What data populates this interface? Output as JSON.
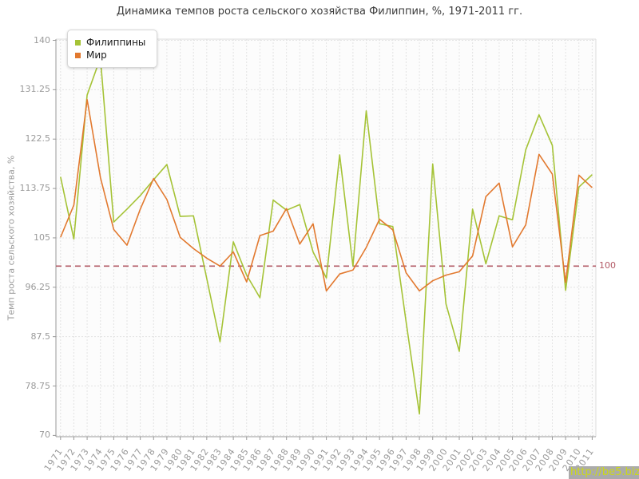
{
  "title": "Динамика темпов роста сельского хозяйства Филиппин, %, 1971-2011 гг.",
  "y_axis_title": "Темп роста сельского хозяйства, %",
  "watermark": "http://be5.biz/",
  "guide": {
    "value": 100,
    "label": "100",
    "color": "#b25965"
  },
  "legend": {
    "items": [
      {
        "label": "Филиппины",
        "color": "#a5c336"
      },
      {
        "label": "Мир",
        "color": "#e2792f"
      }
    ]
  },
  "colors": {
    "philippines_line": "#a5c336",
    "world_line": "#e2792f",
    "grid": "#e3e3e3",
    "axis": "#999999",
    "tick_text": "#9a9a9a",
    "plot_background": "#fcfcfc",
    "plot_border_light": "#dddddd",
    "guide_line": "#b25965",
    "watermark_bg": "#ababab",
    "watermark_text": "#ccd918"
  },
  "chart_data": {
    "type": "line",
    "title": "Динамика темпов роста сельского хозяйства Филиппин, %, 1971-2011 гг.",
    "xlabel": "",
    "ylabel": "Темп роста сельского хозяйства, %",
    "ylim": [
      70,
      140
    ],
    "y_ticks": [
      140,
      131.25,
      122.5,
      113.75,
      105,
      96.25,
      87.5,
      78.75,
      70
    ],
    "grid": true,
    "legend_position": "top-left",
    "guide_value": 100,
    "x": [
      1971,
      1972,
      1973,
      1974,
      1975,
      1976,
      1977,
      1978,
      1979,
      1980,
      1981,
      1982,
      1983,
      1984,
      1985,
      1986,
      1987,
      1988,
      1989,
      1990,
      1991,
      1992,
      1993,
      1994,
      1995,
      1996,
      1997,
      1998,
      1999,
      2000,
      2001,
      2002,
      2003,
      2004,
      2005,
      2006,
      2007,
      2008,
      2009,
      2010,
      2011
    ],
    "series": [
      {
        "name": "Филиппины",
        "color": "#a5c336",
        "values": [
          115.8,
          104.8,
          130.3,
          136.9,
          107.8,
          110.1,
          112.5,
          115.3,
          118.0,
          108.8,
          108.9,
          97.8,
          86.6,
          104.3,
          98.4,
          94.4,
          111.7,
          109.9,
          110.9,
          102.5,
          97.9,
          119.7,
          100.0,
          127.5,
          107.5,
          107.0,
          90.1,
          73.8,
          118.1,
          93.3,
          84.9,
          110.1,
          100.4,
          108.9,
          108.2,
          120.6,
          126.8,
          121.4,
          95.7,
          114.0,
          116.2
        ]
      },
      {
        "name": "Мир",
        "color": "#e2792f",
        "values": [
          105.1,
          110.8,
          129.5,
          115.7,
          106.5,
          103.7,
          110.1,
          115.5,
          111.8,
          105.1,
          103.1,
          101.4,
          100.0,
          102.5,
          97.2,
          105.4,
          106.2,
          110.2,
          103.9,
          107.5,
          95.6,
          98.6,
          99.3,
          103.3,
          108.3,
          106.4,
          98.8,
          95.6,
          97.4,
          98.4,
          99.0,
          101.8,
          112.3,
          114.7,
          103.4,
          107.3,
          119.8,
          116.3,
          97.1,
          116.1,
          113.9
        ]
      }
    ]
  }
}
